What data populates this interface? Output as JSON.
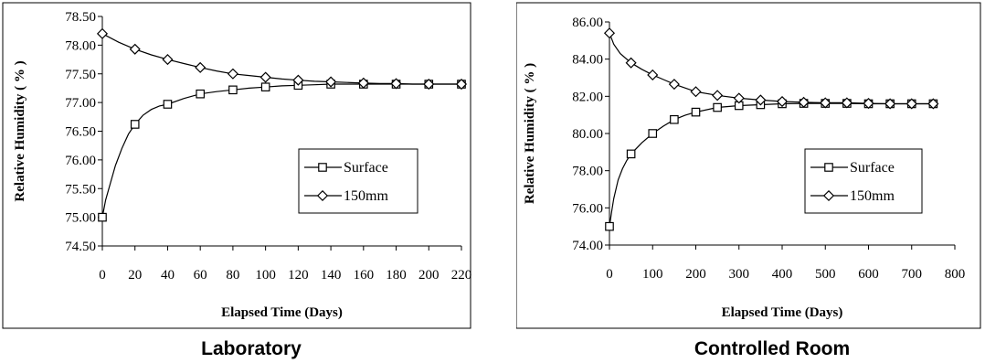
{
  "chart_data": [
    {
      "type": "line",
      "caption": "Laboratory",
      "xlabel": "Elapsed Time (Days)",
      "ylabel": "Relative Humidity ( % )",
      "xlim": [
        0,
        220
      ],
      "ylim": [
        74.5,
        78.5
      ],
      "xticks": [
        0,
        20,
        40,
        60,
        80,
        100,
        120,
        140,
        160,
        180,
        200,
        220
      ],
      "xtick_labels": [
        "0",
        "20",
        "40",
        "60",
        "80",
        "100",
        "120",
        "140",
        "160",
        "180",
        "200",
        "220"
      ],
      "yticks": [
        74.5,
        75.0,
        75.5,
        76.0,
        76.5,
        77.0,
        77.5,
        78.0,
        78.5
      ],
      "ytick_labels": [
        "74.50",
        "75.00",
        "75.50",
        "76.00",
        "76.50",
        "77.00",
        "77.50",
        "78.00",
        "78.50"
      ],
      "grid": false,
      "legend_position": "right",
      "series": [
        {
          "name": "Surface",
          "marker": "square",
          "marker_x": [
            0,
            20,
            40,
            60,
            80,
            100,
            120,
            140,
            160,
            180,
            200,
            220
          ],
          "marker_y": [
            75.0,
            76.62,
            76.97,
            77.15,
            77.22,
            77.27,
            77.3,
            77.32,
            77.32,
            77.32,
            77.32,
            77.32
          ],
          "x": [
            0,
            2,
            5,
            8,
            12,
            16,
            20,
            25,
            30,
            35,
            40,
            50,
            60,
            70,
            80,
            90,
            100,
            110,
            120,
            130,
            140,
            150,
            160,
            170,
            180,
            190,
            200,
            210,
            220
          ],
          "y": [
            75.0,
            75.3,
            75.6,
            75.9,
            76.2,
            76.45,
            76.62,
            76.78,
            76.88,
            76.94,
            76.97,
            77.07,
            77.15,
            77.19,
            77.22,
            77.25,
            77.27,
            77.29,
            77.3,
            77.31,
            77.32,
            77.32,
            77.32,
            77.32,
            77.32,
            77.32,
            77.32,
            77.32,
            77.32
          ]
        },
        {
          "name": "150mm",
          "marker": "diamond",
          "marker_x": [
            0,
            20,
            40,
            60,
            80,
            100,
            120,
            140,
            160,
            180,
            200,
            220
          ],
          "marker_y": [
            78.2,
            77.93,
            77.75,
            77.61,
            77.5,
            77.44,
            77.39,
            77.36,
            77.34,
            77.33,
            77.32,
            77.32
          ],
          "x": [
            0,
            10,
            20,
            30,
            40,
            50,
            60,
            70,
            80,
            90,
            100,
            110,
            120,
            130,
            140,
            150,
            160,
            170,
            180,
            190,
            200,
            210,
            220
          ],
          "y": [
            78.2,
            78.05,
            77.93,
            77.83,
            77.75,
            77.68,
            77.61,
            77.55,
            77.5,
            77.47,
            77.44,
            77.41,
            77.39,
            77.37,
            77.36,
            77.35,
            77.34,
            77.33,
            77.33,
            77.32,
            77.32,
            77.32,
            77.32
          ]
        }
      ]
    },
    {
      "type": "line",
      "caption": "Controlled Room",
      "xlabel": "Elapsed Time (Days)",
      "ylabel": "Relative Humidity ( % )",
      "xlim": [
        0,
        800
      ],
      "ylim": [
        74.0,
        86.0
      ],
      "xticks": [
        0,
        100,
        200,
        300,
        400,
        500,
        600,
        700,
        800
      ],
      "xtick_labels": [
        "0",
        "100",
        "200",
        "300",
        "400",
        "500",
        "600",
        "700",
        "800"
      ],
      "yticks": [
        74.0,
        76.0,
        78.0,
        80.0,
        82.0,
        84.0,
        86.0
      ],
      "ytick_labels": [
        "74.00",
        "76.00",
        "78.00",
        "80.00",
        "82.00",
        "84.00",
        "86.00"
      ],
      "grid": false,
      "legend_position": "right",
      "series": [
        {
          "name": "Surface",
          "marker": "square",
          "marker_x": [
            0,
            50,
            100,
            150,
            200,
            250,
            300,
            350,
            400,
            450,
            500,
            550,
            600,
            650,
            700,
            750
          ],
          "marker_y": [
            75.0,
            78.9,
            80.0,
            80.75,
            81.15,
            81.4,
            81.5,
            81.55,
            81.6,
            81.62,
            81.62,
            81.62,
            81.6,
            81.6,
            81.6,
            81.6
          ],
          "x": [
            0,
            5,
            10,
            20,
            30,
            40,
            50,
            75,
            100,
            125,
            150,
            175,
            200,
            250,
            300,
            350,
            400,
            450,
            500,
            550,
            600,
            650,
            700,
            750
          ],
          "y": [
            75.0,
            75.8,
            76.5,
            77.5,
            78.1,
            78.55,
            78.9,
            79.5,
            80.0,
            80.4,
            80.75,
            80.98,
            81.15,
            81.4,
            81.5,
            81.55,
            81.6,
            81.62,
            81.62,
            81.62,
            81.6,
            81.6,
            81.6,
            81.6
          ]
        },
        {
          "name": "150mm",
          "marker": "diamond",
          "marker_x": [
            0,
            50,
            100,
            150,
            200,
            250,
            300,
            350,
            400,
            450,
            500,
            550,
            600,
            650,
            700,
            750
          ],
          "marker_y": [
            85.4,
            83.8,
            83.15,
            82.65,
            82.25,
            82.05,
            81.9,
            81.8,
            81.72,
            81.68,
            81.65,
            81.65,
            81.62,
            81.6,
            81.6,
            81.6
          ],
          "x": [
            0,
            10,
            25,
            50,
            75,
            100,
            125,
            150,
            175,
            200,
            250,
            300,
            350,
            400,
            450,
            500,
            550,
            600,
            650,
            700,
            750
          ],
          "y": [
            85.4,
            84.8,
            84.3,
            83.8,
            83.45,
            83.15,
            82.9,
            82.65,
            82.45,
            82.25,
            82.05,
            81.9,
            81.8,
            81.72,
            81.68,
            81.65,
            81.65,
            81.62,
            81.6,
            81.6,
            81.6
          ]
        }
      ]
    }
  ]
}
